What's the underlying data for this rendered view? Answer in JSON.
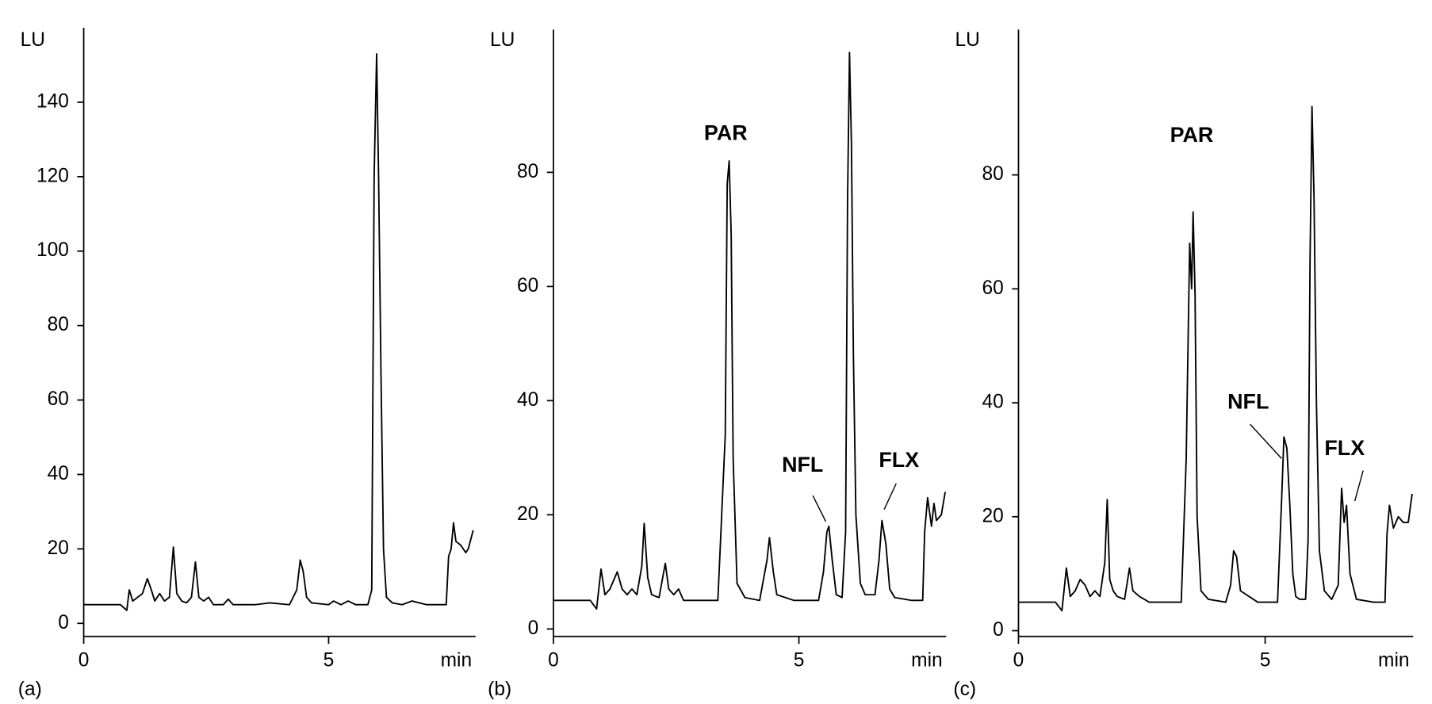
{
  "chart_data": [
    {
      "type": "line",
      "panel": "(a)",
      "ylabel": "LU",
      "xlabel": "min",
      "color": "#000000",
      "xlim": [
        0,
        8
      ],
      "xticks": [
        0,
        5
      ],
      "ylim": [
        -3.5,
        160
      ],
      "yticks": [
        0,
        20,
        40,
        60,
        80,
        100,
        120,
        140
      ],
      "annotations": [],
      "x": [
        0,
        0.75,
        0.88,
        0.93,
        1.0,
        1.1,
        1.2,
        1.3,
        1.38,
        1.45,
        1.55,
        1.65,
        1.75,
        1.83,
        1.9,
        2.0,
        2.1,
        2.2,
        2.28,
        2.35,
        2.45,
        2.55,
        2.65,
        2.85,
        2.95,
        3.05,
        3.5,
        3.8,
        4.2,
        4.35,
        4.42,
        4.48,
        4.55,
        4.65,
        5.0,
        5.1,
        5.25,
        5.4,
        5.55,
        5.8,
        5.88,
        5.93,
        5.98,
        6.02,
        6.07,
        6.12,
        6.18,
        6.3,
        6.5,
        6.7,
        7.0,
        7.4,
        7.45,
        7.5,
        7.55,
        7.6,
        7.7,
        7.8,
        7.85,
        7.95
      ],
      "values": [
        5,
        5,
        3.5,
        9,
        6,
        7,
        8,
        12,
        9,
        6,
        8,
        6,
        7,
        20.5,
        8,
        6,
        5.5,
        7,
        16.5,
        7,
        6,
        7,
        5,
        5,
        6.5,
        5,
        5,
        5.5,
        5,
        9,
        17,
        14,
        7,
        5.5,
        5,
        6,
        5,
        6,
        5,
        5,
        9,
        120,
        153,
        120,
        65,
        20,
        7,
        5.5,
        5,
        6,
        5,
        5,
        18,
        20,
        27,
        22,
        21,
        19,
        20,
        25
      ]
    },
    {
      "type": "line",
      "panel": "(b)",
      "ylabel": "LU",
      "xlabel": "min",
      "color": "#000000",
      "xlim": [
        0,
        8
      ],
      "xticks": [
        0,
        5
      ],
      "ylim": [
        -1.3,
        105
      ],
      "yticks": [
        0,
        20,
        40,
        60,
        80
      ],
      "annotations": [
        "PAR",
        "NFL",
        "FLX"
      ],
      "x": [
        0,
        0.75,
        0.88,
        0.97,
        1.05,
        1.15,
        1.25,
        1.3,
        1.4,
        1.5,
        1.6,
        1.7,
        1.8,
        1.85,
        1.92,
        2.0,
        2.15,
        2.28,
        2.35,
        2.45,
        2.55,
        2.65,
        3.35,
        3.5,
        3.54,
        3.58,
        3.62,
        3.66,
        3.74,
        3.9,
        4.2,
        4.35,
        4.4,
        4.48,
        4.55,
        4.9,
        5.4,
        5.5,
        5.57,
        5.61,
        5.68,
        5.76,
        5.88,
        5.95,
        5.99,
        6.03,
        6.07,
        6.11,
        6.16,
        6.25,
        6.35,
        6.55,
        6.63,
        6.69,
        6.77,
        6.85,
        6.95,
        7.3,
        7.52,
        7.56,
        7.62,
        7.7,
        7.75,
        7.8,
        7.9,
        7.98
      ],
      "values": [
        5,
        5,
        3.5,
        10.5,
        6,
        7,
        9,
        10,
        7,
        6,
        7,
        6,
        11,
        18.5,
        9,
        6,
        5.5,
        11.5,
        7,
        6,
        7,
        5,
        5,
        34,
        78,
        82,
        69,
        30,
        8,
        5.5,
        5,
        12,
        16,
        10,
        6,
        5,
        5,
        10,
        17,
        18,
        12,
        6,
        5.5,
        17,
        75,
        101,
        85,
        48,
        20,
        8,
        6,
        6,
        12,
        19,
        15,
        7,
        5.5,
        5,
        5,
        17,
        23,
        18,
        22,
        19,
        20,
        24
      ]
    },
    {
      "type": "line",
      "panel": "(c)",
      "ylabel": "LU",
      "xlabel": "min",
      "color": "#000000",
      "xlim": [
        0,
        8
      ],
      "xticks": [
        0,
        5
      ],
      "ylim": [
        -1,
        105.5
      ],
      "yticks": [
        0,
        20,
        40,
        60,
        80
      ],
      "annotations": [
        "PAR",
        "NFL",
        "FLX"
      ],
      "x": [
        0,
        0.75,
        0.88,
        0.97,
        1.05,
        1.15,
        1.25,
        1.35,
        1.45,
        1.55,
        1.65,
        1.75,
        1.8,
        1.85,
        1.92,
        2.0,
        2.15,
        2.25,
        2.32,
        2.45,
        2.55,
        2.65,
        3.3,
        3.4,
        3.47,
        3.51,
        3.54,
        3.58,
        3.62,
        3.7,
        3.85,
        4.2,
        4.3,
        4.36,
        4.42,
        4.5,
        4.85,
        5.25,
        5.33,
        5.38,
        5.44,
        5.5,
        5.56,
        5.62,
        5.7,
        5.82,
        5.87,
        5.91,
        5.95,
        5.99,
        6.04,
        6.1,
        6.2,
        6.35,
        6.48,
        6.55,
        6.6,
        6.65,
        6.72,
        6.85,
        7.2,
        7.43,
        7.47,
        7.52,
        7.6,
        7.7,
        7.8,
        7.9,
        7.98
      ],
      "values": [
        5,
        5,
        3.5,
        11,
        6,
        7,
        9,
        8,
        6,
        7,
        6,
        12,
        23,
        9,
        7,
        6,
        5.5,
        11,
        7,
        6,
        5.5,
        5,
        5,
        30,
        68,
        60,
        73.5,
        59,
        20,
        7,
        5.5,
        5,
        8,
        14,
        13,
        7,
        5,
        5,
        22,
        34,
        32,
        22,
        10,
        6,
        5.5,
        5.5,
        16,
        65,
        92,
        76,
        40,
        14,
        7,
        5.5,
        8,
        25,
        19,
        22,
        10,
        5.5,
        5,
        5,
        17,
        22,
        18,
        20,
        19,
        19,
        24
      ]
    }
  ]
}
